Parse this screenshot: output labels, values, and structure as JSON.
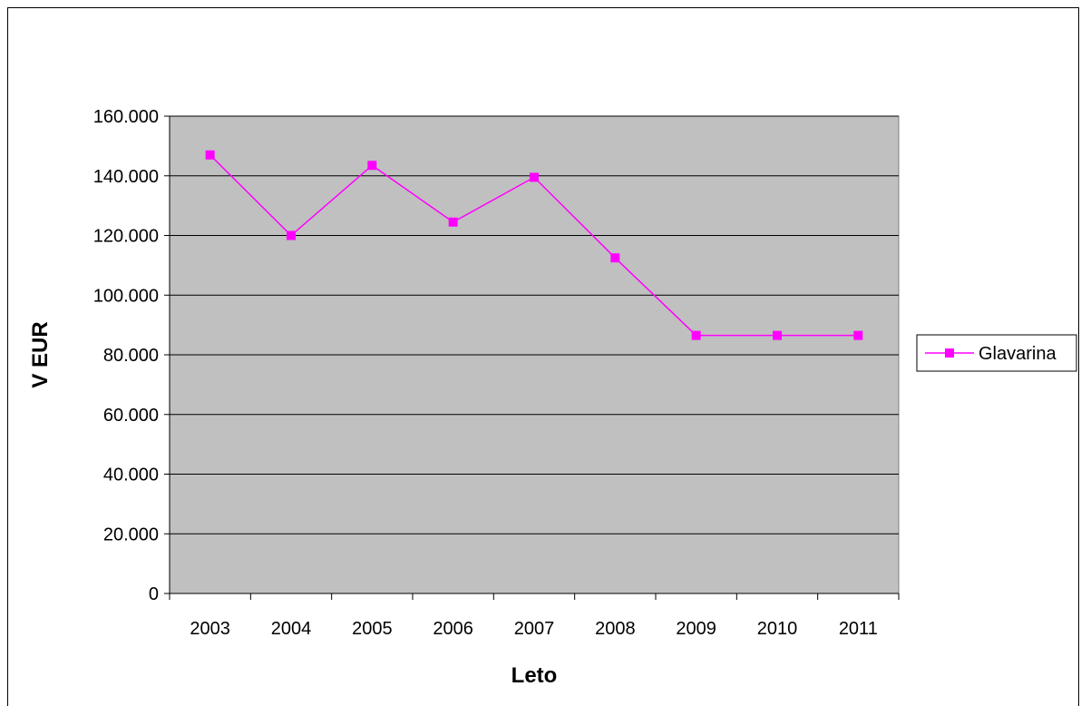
{
  "chart_data": {
    "type": "line",
    "categories": [
      "2003",
      "2004",
      "2005",
      "2006",
      "2007",
      "2008",
      "2009",
      "2010",
      "2011"
    ],
    "series": [
      {
        "name": "Glavarina",
        "values": [
          147000,
          120000,
          143500,
          124500,
          139500,
          112500,
          86500,
          86500,
          86500
        ]
      }
    ],
    "xlabel": "Leto",
    "ylabel": "V EUR",
    "ylim": [
      0,
      160000
    ],
    "yticks": [
      0,
      20000,
      40000,
      60000,
      80000,
      100000,
      120000,
      140000,
      160000
    ],
    "ytick_labels": [
      "0",
      "20.000",
      "40.000",
      "60.000",
      "80.000",
      "100.000",
      "120.000",
      "140.000",
      "160.000"
    ],
    "grid": true,
    "legend_position": "right",
    "colors": {
      "series": "#ff00ff",
      "plot_background": "#c0c0c0",
      "grid": "#000000"
    }
  }
}
